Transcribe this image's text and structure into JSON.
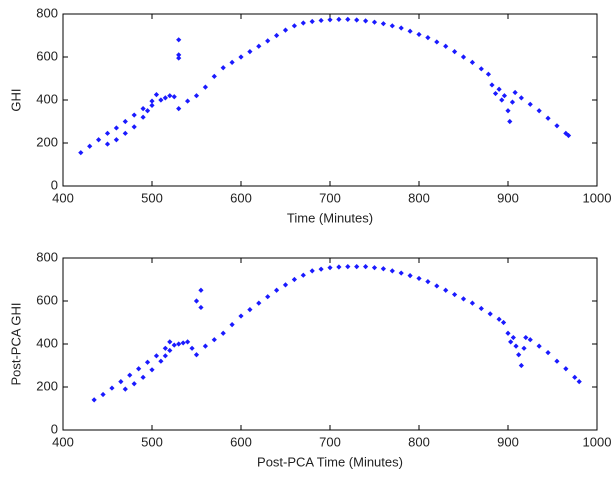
{
  "chart_data": [
    {
      "type": "scatter",
      "xlabel": "Time (Minutes)",
      "ylabel": "GHI",
      "color": "#1a1aff",
      "xlim": [
        400,
        1000
      ],
      "ylim": [
        0,
        800
      ],
      "xticks": [
        400,
        500,
        600,
        700,
        800,
        900,
        1000
      ],
      "yticks": [
        0,
        200,
        400,
        600,
        800
      ],
      "x": [
        420,
        430,
        440,
        450,
        460,
        470,
        480,
        490,
        500,
        505,
        450,
        460,
        470,
        480,
        490,
        495,
        500,
        510,
        515,
        520,
        525,
        530,
        530,
        530,
        530,
        540,
        550,
        560,
        570,
        580,
        590,
        600,
        610,
        620,
        630,
        640,
        650,
        660,
        670,
        680,
        690,
        700,
        710,
        720,
        730,
        740,
        750,
        760,
        770,
        780,
        790,
        800,
        810,
        820,
        830,
        840,
        850,
        860,
        870,
        878,
        882,
        886,
        890,
        893,
        896,
        900,
        902,
        905,
        908,
        915,
        925,
        935,
        945,
        955,
        965,
        968
      ],
      "values": [
        155,
        185,
        215,
        245,
        270,
        300,
        330,
        360,
        395,
        425,
        195,
        215,
        245,
        275,
        320,
        350,
        375,
        400,
        410,
        420,
        415,
        360,
        680,
        610,
        595,
        395,
        420,
        460,
        510,
        550,
        575,
        600,
        625,
        650,
        675,
        700,
        725,
        745,
        758,
        765,
        770,
        773,
        775,
        775,
        772,
        768,
        762,
        755,
        745,
        735,
        720,
        705,
        690,
        670,
        650,
        625,
        600,
        575,
        545,
        520,
        470,
        430,
        450,
        400,
        420,
        350,
        300,
        390,
        435,
        410,
        380,
        350,
        315,
        280,
        245,
        235
      ]
    },
    {
      "type": "scatter",
      "xlabel": "Post-PCA Time (Minutes)",
      "ylabel": "Post-PCA GHI",
      "color": "#1a1aff",
      "xlim": [
        400,
        1000
      ],
      "ylim": [
        0,
        800
      ],
      "xticks": [
        400,
        500,
        600,
        700,
        800,
        900,
        1000
      ],
      "yticks": [
        0,
        200,
        400,
        600,
        800
      ],
      "x": [
        435,
        445,
        455,
        465,
        475,
        485,
        495,
        505,
        515,
        520,
        470,
        480,
        490,
        500,
        510,
        515,
        520,
        525,
        530,
        535,
        540,
        545,
        550,
        550,
        555,
        555,
        560,
        570,
        580,
        590,
        600,
        610,
        620,
        630,
        640,
        650,
        660,
        670,
        680,
        690,
        700,
        710,
        720,
        730,
        740,
        750,
        760,
        770,
        780,
        790,
        800,
        810,
        820,
        830,
        840,
        850,
        860,
        870,
        880,
        890,
        895,
        900,
        903,
        906,
        909,
        912,
        915,
        918,
        920,
        925,
        935,
        945,
        955,
        965,
        975,
        980
      ],
      "values": [
        140,
        165,
        195,
        225,
        255,
        285,
        315,
        345,
        380,
        410,
        190,
        215,
        245,
        280,
        320,
        345,
        370,
        395,
        400,
        405,
        410,
        380,
        350,
        600,
        650,
        570,
        390,
        420,
        450,
        490,
        530,
        560,
        590,
        620,
        650,
        675,
        700,
        720,
        740,
        748,
        755,
        758,
        760,
        760,
        760,
        755,
        750,
        740,
        730,
        718,
        705,
        690,
        670,
        650,
        630,
        610,
        590,
        565,
        540,
        515,
        500,
        450,
        410,
        430,
        390,
        350,
        300,
        380,
        430,
        420,
        390,
        360,
        320,
        285,
        245,
        225
      ]
    }
  ]
}
